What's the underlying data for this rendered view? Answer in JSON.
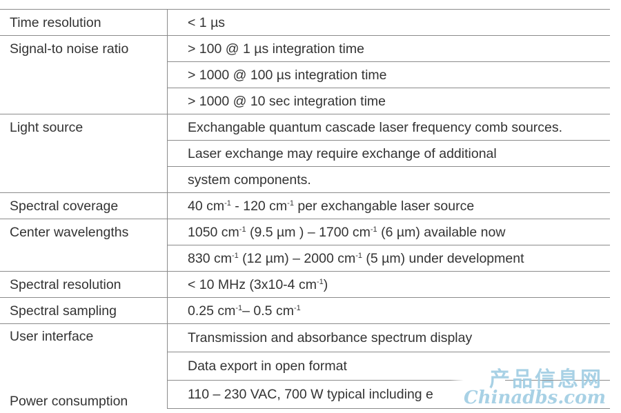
{
  "rows": [
    {
      "label": "Time resolution",
      "value": "< 1 µs"
    },
    {
      "label": "Signal-to noise ratio",
      "value": "> 100 @ 1 µs integration time"
    },
    {
      "label": "",
      "value": "> 1000 @ 100 µs integration time"
    },
    {
      "label": "",
      "value": "> 1000 @ 10 sec integration time"
    },
    {
      "label": "Light source",
      "value": "Exchangable quantum cascade laser frequency comb sources."
    },
    {
      "label": "",
      "value": "Laser exchange may require exchange of additional"
    },
    {
      "label": "",
      "value": "system components."
    },
    {
      "label": "Spectral coverage",
      "parts": [
        "40 cm",
        "-1",
        " - 120 cm",
        "-1",
        " per exchangable laser source"
      ]
    },
    {
      "label": "Center wavelengths",
      "parts": [
        "1050 cm",
        "-1",
        " (9.5 µm ) – 1700 cm",
        "-1",
        " (6 µm) available now"
      ]
    },
    {
      "label": "",
      "parts": [
        "830 cm",
        "-1",
        " (12 µm) – 2000 cm",
        "-1",
        " (5 µm) under development"
      ]
    },
    {
      "label": "Spectral resolution",
      "parts": [
        "< 10 MHz (3x10-4 cm",
        "-1",
        ")"
      ]
    },
    {
      "label": "Spectral sampling",
      "parts": [
        "0.25 cm",
        "-1",
        "– 0.5 cm",
        "-1"
      ]
    },
    {
      "label": "User interface",
      "value": "Transmission and absorbance spectrum display"
    },
    {
      "label": "",
      "value": "Data export in open format"
    },
    {
      "label": "Power consumption",
      "value": "110 – 230 VAC, 700 W typical including e"
    }
  ],
  "watermark": {
    "line1": "产品信息网",
    "line2": "Chinadbs.com",
    "color": "#9fcde3"
  }
}
